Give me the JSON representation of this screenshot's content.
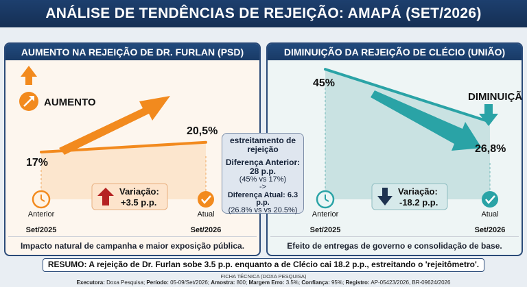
{
  "title": "ANÁLISE DE TENDÊNCIAS DE REJEIÇÃO: AMAPÁ (SET/2026)",
  "left_panel": {
    "title": "AUMENTO NA REJEIÇÃO DE DR. FURLAN (PSD)",
    "badge": "AUMENTO",
    "variation_label": "Variação:",
    "variation_value": "+3.5 p.p.",
    "caption": "Impacto natural de campanha e maior exposição pública."
  },
  "right_panel": {
    "title": "DIMINUIÇÃO DA REJEIÇÃO DE CLÉCIO (UNIÃO)",
    "badge": "DIMINUIÇÃO",
    "variation_label": "Variação:",
    "variation_value": "-18.2 p.p.",
    "caption": "Efeito de entregas de governo e consolidação de base."
  },
  "center_box": {
    "line1": "estreitamento de rejeição",
    "line2": "Diferença Anterior: 28 p.p.",
    "line3": "(45% vs 17%)",
    "arrow": "->",
    "line4": "Diferença Atual: 6.3 p.p.",
    "line5": "(26.8% vs vs 20.5%)"
  },
  "summary": "RESUMO: A rejeição de Dr. Furlan sobe 3.5 p.p. enquanto a de Clécio cai 18.2 p.p., estreitando o 'rejeitômetro'.",
  "ficha": {
    "title": "FICHA TÉCNICA (DOXA PESQUISA)",
    "executora_label": "Executora:",
    "executora": "Doxa Pesquisa;",
    "periodo_label": "Período:",
    "periodo": "05-09/Set/2026;",
    "amostra_label": "Amostra:",
    "amostra": "800;",
    "margem_label": "Margem Erro:",
    "margem": "3.5%;",
    "confianca_label": "Confiança:",
    "confianca": "95%;",
    "registro_label": "Registro:",
    "registro": "AP-05423/2026, BR-09624/2026"
  },
  "colors": {
    "orange": "#f28a1e",
    "teal": "#2aa3a6",
    "navy": "#1d3f6e",
    "red": "#b52222",
    "darknavy": "#1f3350"
  },
  "chart_data": [
    {
      "type": "line",
      "series": [
        {
          "name": "Dr. Furlan (PSD)",
          "values": [
            17,
            20.5
          ]
        }
      ],
      "categories": [
        "Set/2025",
        "Set/2026"
      ],
      "point_labels": [
        "17%",
        "20,5%"
      ],
      "point_names": [
        "Anterior",
        "Atual"
      ],
      "ylim": [
        0,
        50
      ]
    },
    {
      "type": "line",
      "series": [
        {
          "name": "Clécio (União)",
          "values": [
            45,
            26.8
          ]
        }
      ],
      "categories": [
        "Set/2025",
        "Set/2026"
      ],
      "point_labels": [
        "45%",
        "26,8%"
      ],
      "point_names": [
        "Anterior",
        "Atual"
      ],
      "ylim": [
        0,
        50
      ]
    }
  ]
}
